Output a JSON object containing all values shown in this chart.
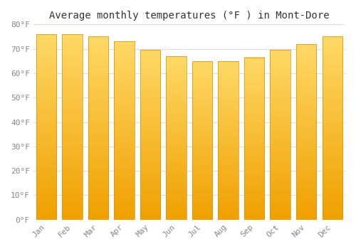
{
  "categories": [
    "Jan",
    "Feb",
    "Mar",
    "Apr",
    "May",
    "Jun",
    "Jul",
    "Aug",
    "Sep",
    "Oct",
    "Nov",
    "Dec"
  ],
  "values": [
    76.0,
    76.0,
    75.0,
    73.0,
    69.5,
    67.0,
    65.0,
    65.0,
    66.5,
    69.5,
    72.0,
    75.0
  ],
  "bar_color_bottom": "#FFD966",
  "bar_color_top": "#F0A000",
  "bar_edge_color": "#E09000",
  "background_color": "#FFFFFF",
  "grid_color": "#DDDDDD",
  "title": "Average monthly temperatures (°F ) in Mont-Dore",
  "title_fontsize": 10,
  "tick_fontsize": 8,
  "ylim": [
    0,
    80
  ],
  "yticks": [
    0,
    10,
    20,
    30,
    40,
    50,
    60,
    70,
    80
  ],
  "ylabel_format": "°F",
  "bar_width": 0.78
}
